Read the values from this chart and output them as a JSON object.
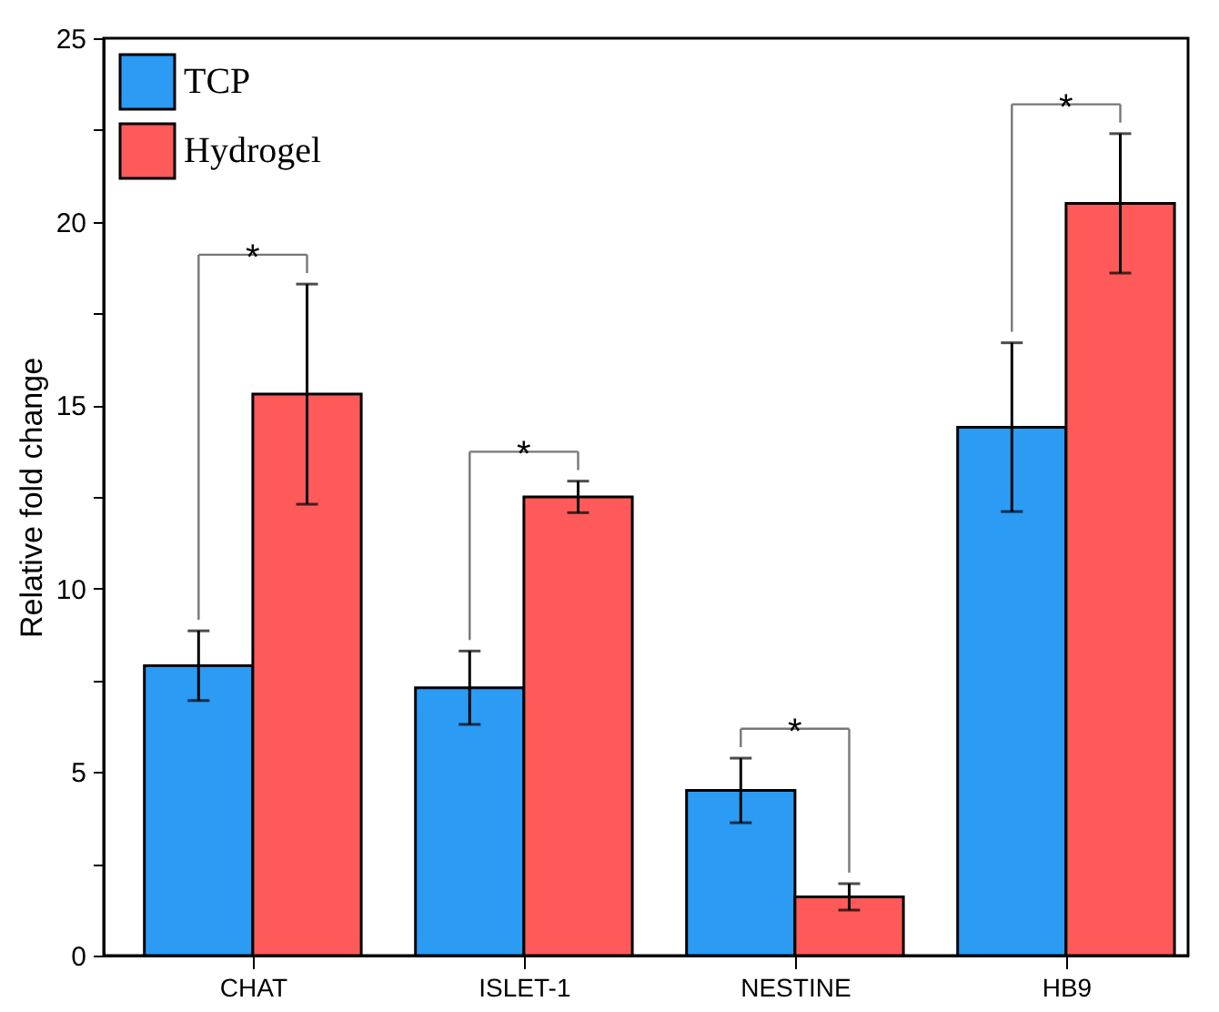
{
  "chart_data": {
    "type": "bar",
    "ylabel": "Relative fold change",
    "categories": [
      "CHAT",
      "ISLET-1",
      "NESTINE",
      "HB9"
    ],
    "series": [
      {
        "name": "TCP",
        "color": "#2b9bf4",
        "values": [
          7.9,
          7.3,
          4.5,
          14.4
        ],
        "errors": [
          0.95,
          1.0,
          0.88,
          2.3
        ]
      },
      {
        "name": "Hydrogel",
        "color": "#fe5a5a",
        "values": [
          15.3,
          12.5,
          1.6,
          20.5
        ],
        "errors": [
          3.0,
          0.43,
          0.36,
          1.9
        ]
      }
    ],
    "ylim": [
      0,
      25
    ],
    "yticks": [
      0,
      {
        "value": 2.5,
        "label": null
      },
      5,
      {
        "value": 7.5,
        "label": null
      },
      10,
      {
        "value": 12.5,
        "label": null
      },
      15,
      {
        "value": 17.5,
        "label": null
      },
      20,
      {
        "value": 22.5,
        "label": null
      },
      25
    ],
    "annotations": [
      "*",
      "*",
      "*",
      "*"
    ],
    "legend": "top left",
    "grid": false
  }
}
